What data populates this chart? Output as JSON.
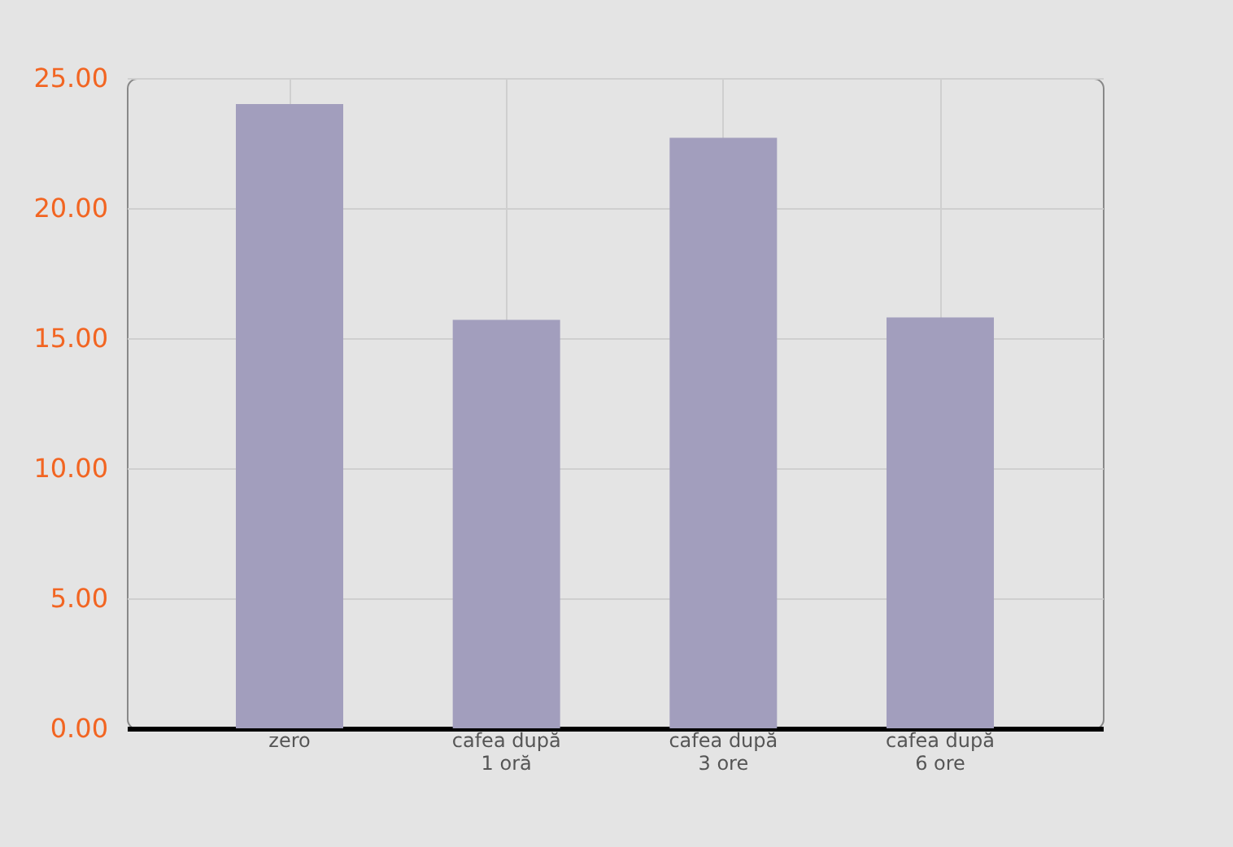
{
  "chart_data": {
    "type": "bar",
    "categories": [
      "zero",
      "cafea după\n1 oră",
      "cafea după\n3 ore",
      "cafea după\n6 ore"
    ],
    "values": [
      24.0,
      15.7,
      22.7,
      15.8
    ],
    "color": "#a29ebd",
    "ylim": [
      0,
      25
    ],
    "yticks": [
      {
        "value": 0,
        "label": "0.00"
      },
      {
        "value": 5,
        "label": "5.00"
      },
      {
        "value": 10,
        "label": "10.00"
      },
      {
        "value": 15,
        "label": "15.00"
      },
      {
        "value": 20,
        "label": "20.00"
      },
      {
        "value": 25,
        "label": "25.00"
      }
    ],
    "grid": true
  }
}
